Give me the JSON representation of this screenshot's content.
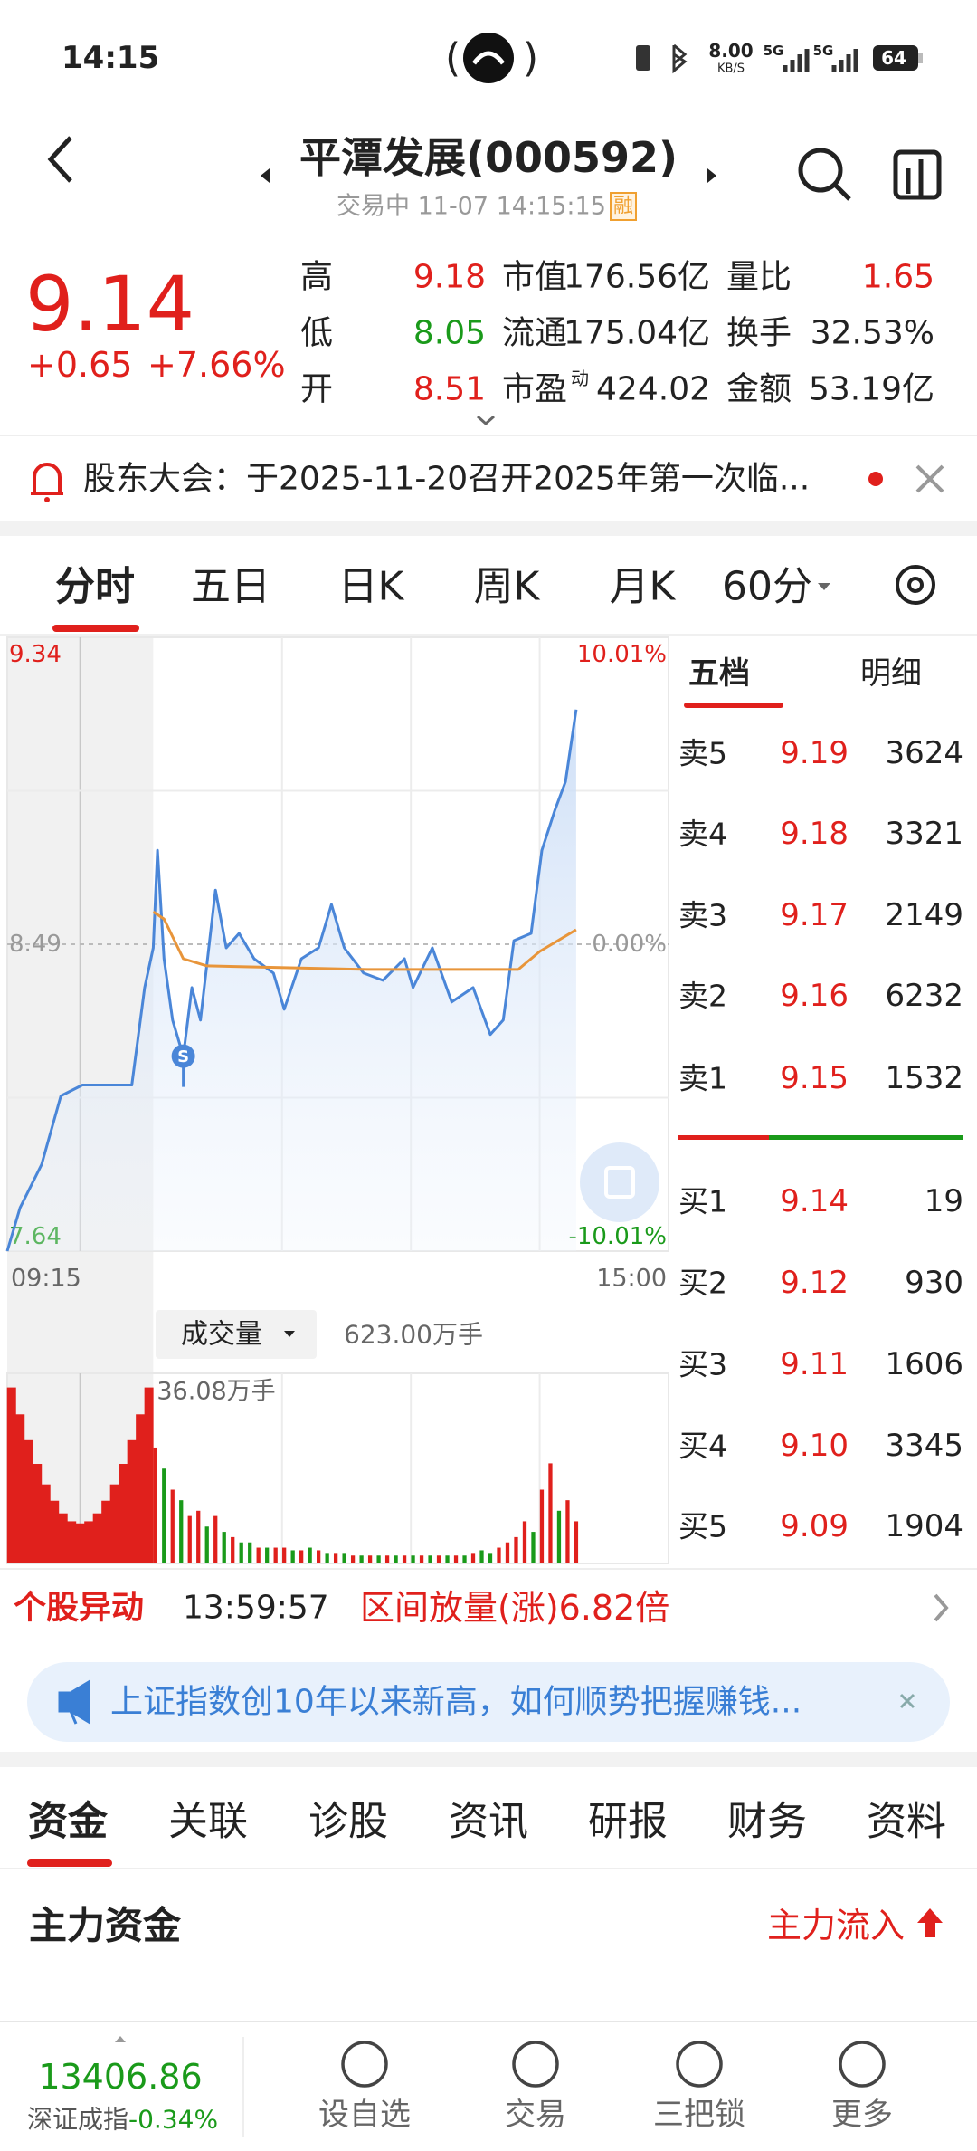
{
  "status_bar": {
    "time": "14:15",
    "net_speed": "8.00",
    "net_unit": "KB/S",
    "signal1": "5G",
    "signal2": "5G",
    "battery": "64"
  },
  "header": {
    "title": "平潭发展(000592)",
    "subtitle": "交易中 11-07 14:15:15",
    "badge": "融"
  },
  "quote": {
    "price": "9.14",
    "change": "+0.65",
    "change_pct": "+7.66%",
    "stats": [
      {
        "label": "高",
        "value": "9.18",
        "color": "#e0201c"
      },
      {
        "label": "市值",
        "value": "176.56亿",
        "color": "#222222"
      },
      {
        "label": "量比",
        "value": "1.65",
        "color": "#e0201c"
      },
      {
        "label": "低",
        "value": "8.05",
        "color": "#1a9a1a"
      },
      {
        "label": "流通",
        "value": "175.04亿",
        "color": "#222222"
      },
      {
        "label": "换手",
        "value": "32.53%",
        "color": "#222222"
      },
      {
        "label": "开",
        "value": "8.51",
        "color": "#e0201c"
      },
      {
        "label": "市盈",
        "sup": "动",
        "value": "424.02",
        "color": "#222222"
      },
      {
        "label": "金额",
        "value": "53.19亿",
        "color": "#222222"
      }
    ]
  },
  "notice": "股东大会：于2025-11-20召开2025年第一次临...",
  "period_tabs": [
    "分时",
    "五日",
    "日K",
    "周K",
    "月K",
    "60分"
  ],
  "chart": {
    "type": "line",
    "xlim": [
      -68,
      240
    ],
    "xticks": [
      {
        "value": -68,
        "label": "09:15"
      },
      {
        "value": 240,
        "label": "15:00"
      }
    ],
    "xgrid": [
      -34,
      60,
      120,
      180
    ],
    "ylim": [
      7.64,
      9.34
    ],
    "yticks": [
      7.64,
      8.49,
      9.34
    ],
    "ygrid": [
      8.065,
      8.915
    ],
    "y2lim": [
      -10.01,
      10.01
    ],
    "y2ticks": [
      {
        "value": -10.01,
        "label": "-10.01%"
      },
      {
        "value": 0,
        "label": "0.00%"
      },
      {
        "value": 10.01,
        "label": "10.01%"
      }
    ],
    "series": [
      {
        "color": "#4a86d8",
        "x": [
          -68,
          -62,
          -52,
          -43,
          -33,
          -10,
          -4,
          0,
          2,
          5,
          9,
          14,
          18,
          22,
          29,
          34,
          40,
          47,
          56,
          61,
          69,
          77,
          83,
          89,
          98,
          107,
          117,
          121,
          130,
          139,
          149,
          157,
          163,
          168,
          176,
          181,
          187,
          192,
          197
        ],
        "values": [
          7.64,
          7.76,
          7.88,
          8.07,
          8.1,
          8.1,
          8.37,
          8.48,
          8.75,
          8.45,
          8.28,
          8.18,
          8.37,
          8.28,
          8.64,
          8.48,
          8.52,
          8.45,
          8.41,
          8.31,
          8.45,
          8.48,
          8.6,
          8.48,
          8.41,
          8.39,
          8.45,
          8.37,
          8.48,
          8.33,
          8.37,
          8.24,
          8.28,
          8.5,
          8.52,
          8.75,
          8.86,
          8.94,
          9.14
        ]
      },
      {
        "color": "#e8953a",
        "x": [
          0,
          5,
          14,
          25,
          100,
          170,
          180,
          197
        ],
        "values": [
          8.58,
          8.56,
          8.45,
          8.43,
          8.42,
          8.42,
          8.47,
          8.53
        ]
      }
    ],
    "marker": {
      "label": "S",
      "x": 14,
      "value": 8.18
    }
  },
  "volume": {
    "selector": "成交量",
    "total": "623.00万手",
    "ylim": [
      0,
      36.08
    ],
    "yticks": [
      {
        "value": 36.08,
        "label": "36.08万手"
      }
    ],
    "x": [
      -66,
      -62,
      -58,
      -54,
      -50,
      -46,
      -42,
      -38,
      -34,
      -30,
      -26,
      -22,
      -18,
      -14,
      -10,
      -6,
      -2,
      1,
      5,
      9,
      13,
      17,
      21,
      25,
      29,
      33,
      37,
      41,
      45,
      49,
      53,
      57,
      61,
      65,
      69,
      73,
      77,
      81,
      85,
      89,
      93,
      97,
      101,
      105,
      109,
      113,
      117,
      121,
      125,
      129,
      133,
      137,
      141,
      145,
      149,
      153,
      157,
      161,
      165,
      169,
      173,
      177,
      181,
      185,
      189,
      193,
      197
    ],
    "values": [
      33.4,
      28.3,
      23.4,
      18.9,
      15.0,
      11.9,
      9.5,
      8.0,
      7.6,
      8.0,
      9.5,
      11.9,
      15.0,
      18.9,
      23.4,
      28.3,
      33.4,
      22,
      18,
      14,
      12,
      9,
      10,
      7,
      9,
      6,
      5,
      4,
      4,
      3,
      3,
      3,
      3,
      2.5,
      2.5,
      3,
      2.5,
      2,
      2,
      2,
      1.5,
      1.5,
      1.5,
      1.5,
      1.5,
      1.5,
      1.5,
      1.5,
      1.5,
      1.5,
      1.5,
      1.5,
      1.5,
      1.5,
      2,
      2.5,
      2,
      3,
      4,
      5,
      8,
      6,
      14,
      19,
      10,
      12,
      8
    ],
    "colors": [
      "#e0201c",
      "#e0201c",
      "#e0201c",
      "#e0201c",
      "#e0201c",
      "#e0201c",
      "#e0201c",
      "#e0201c",
      "#e0201c",
      "#e0201c",
      "#e0201c",
      "#e0201c",
      "#e0201c",
      "#e0201c",
      "#e0201c",
      "#e0201c",
      "#e0201c",
      "#e0201c",
      "#1a9a1a",
      "#e0201c",
      "#1a9a1a",
      "#e0201c",
      "#e0201c",
      "#1a9a1a",
      "#e0201c",
      "#1a9a1a",
      "#e0201c",
      "#1a9a1a",
      "#1a9a1a",
      "#e0201c",
      "#1a9a1a",
      "#e0201c",
      "#e0201c",
      "#1a9a1a",
      "#e0201c",
      "#1a9a1a",
      "#e0201c",
      "#1a9a1a",
      "#e0201c",
      "#1a9a1a",
      "#e0201c",
      "#1a9a1a",
      "#e0201c",
      "#1a9a1a",
      "#e0201c",
      "#1a9a1a",
      "#e0201c",
      "#1a9a1a",
      "#e0201c",
      "#1a9a1a",
      "#e0201c",
      "#1a9a1a",
      "#e0201c",
      "#1a9a1a",
      "#e0201c",
      "#1a9a1a",
      "#1a9a1a",
      "#e0201c",
      "#e0201c",
      "#e0201c",
      "#e0201c",
      "#1a9a1a",
      "#e0201c",
      "#e0201c",
      "#1a9a1a",
      "#e0201c",
      "#e0201c"
    ]
  },
  "order_book": {
    "tabs": [
      "五档",
      "明细"
    ],
    "asks": [
      {
        "level": "卖5",
        "price": "9.19",
        "volume": "3624"
      },
      {
        "level": "卖4",
        "price": "9.18",
        "volume": "3321"
      },
      {
        "level": "卖3",
        "price": "9.17",
        "volume": "2149"
      },
      {
        "level": "卖2",
        "price": "9.16",
        "volume": "6232"
      },
      {
        "level": "卖1",
        "price": "9.15",
        "volume": "1532"
      }
    ],
    "bids": [
      {
        "level": "买1",
        "price": "9.14",
        "volume": "19"
      },
      {
        "level": "买2",
        "price": "9.12",
        "volume": "930"
      },
      {
        "level": "买3",
        "price": "9.11",
        "volume": "1606"
      },
      {
        "level": "买4",
        "price": "9.10",
        "volume": "3345"
      },
      {
        "level": "买5",
        "price": "9.09",
        "volume": "1904"
      }
    ]
  },
  "alert": {
    "label": "个股异动",
    "time": "13:59:57",
    "text": "区间放量(涨)6.82倍"
  },
  "banner": "上证指数创10年以来新高，如何顺势把握赚钱...",
  "section_tabs": [
    "资金",
    "关联",
    "诊股",
    "资讯",
    "研报",
    "财务",
    "资料"
  ],
  "section": {
    "title": "主力资金",
    "flow": "主力流入"
  },
  "index": {
    "value": "13406.86",
    "name": "深证成指",
    "change": "-0.34%"
  },
  "nav": [
    "设自选",
    "交易",
    "三把锁",
    "更多"
  ]
}
